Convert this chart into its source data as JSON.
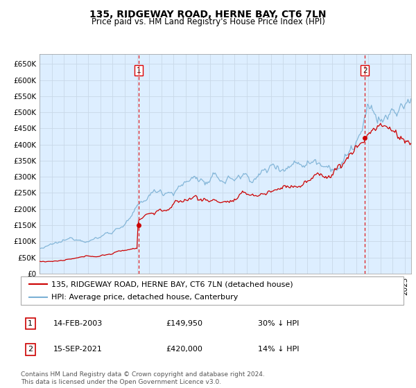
{
  "title": "135, RIDGEWAY ROAD, HERNE BAY, CT6 7LN",
  "subtitle": "Price paid vs. HM Land Registry's House Price Index (HPI)",
  "legend_line1": "135, RIDGEWAY ROAD, HERNE BAY, CT6 7LN (detached house)",
  "legend_line2": "HPI: Average price, detached house, Canterbury",
  "annotation1_date": "14-FEB-2003",
  "annotation1_price": "£149,950",
  "annotation1_hpi": "30% ↓ HPI",
  "annotation2_date": "15-SEP-2021",
  "annotation2_price": "£420,000",
  "annotation2_hpi": "14% ↓ HPI",
  "footer": "Contains HM Land Registry data © Crown copyright and database right 2024.\nThis data is licensed under the Open Government Licence v3.0.",
  "ylim": [
    0,
    680000
  ],
  "yticks": [
    0,
    50000,
    100000,
    150000,
    200000,
    250000,
    300000,
    350000,
    400000,
    450000,
    500000,
    550000,
    600000,
    650000
  ],
  "red_color": "#cc0000",
  "blue_color": "#7ab0d4",
  "bg_color": "#ddeeff",
  "grid_color": "#c8d8e8",
  "vline_color": "#dd0000",
  "purchase1_year": 2003.12,
  "purchase1_value": 149950,
  "purchase2_year": 2021.71,
  "purchase2_value": 420000,
  "title_fontsize": 10,
  "subtitle_fontsize": 8.5,
  "axis_fontsize": 7.5,
  "legend_fontsize": 8,
  "footer_fontsize": 6.5
}
